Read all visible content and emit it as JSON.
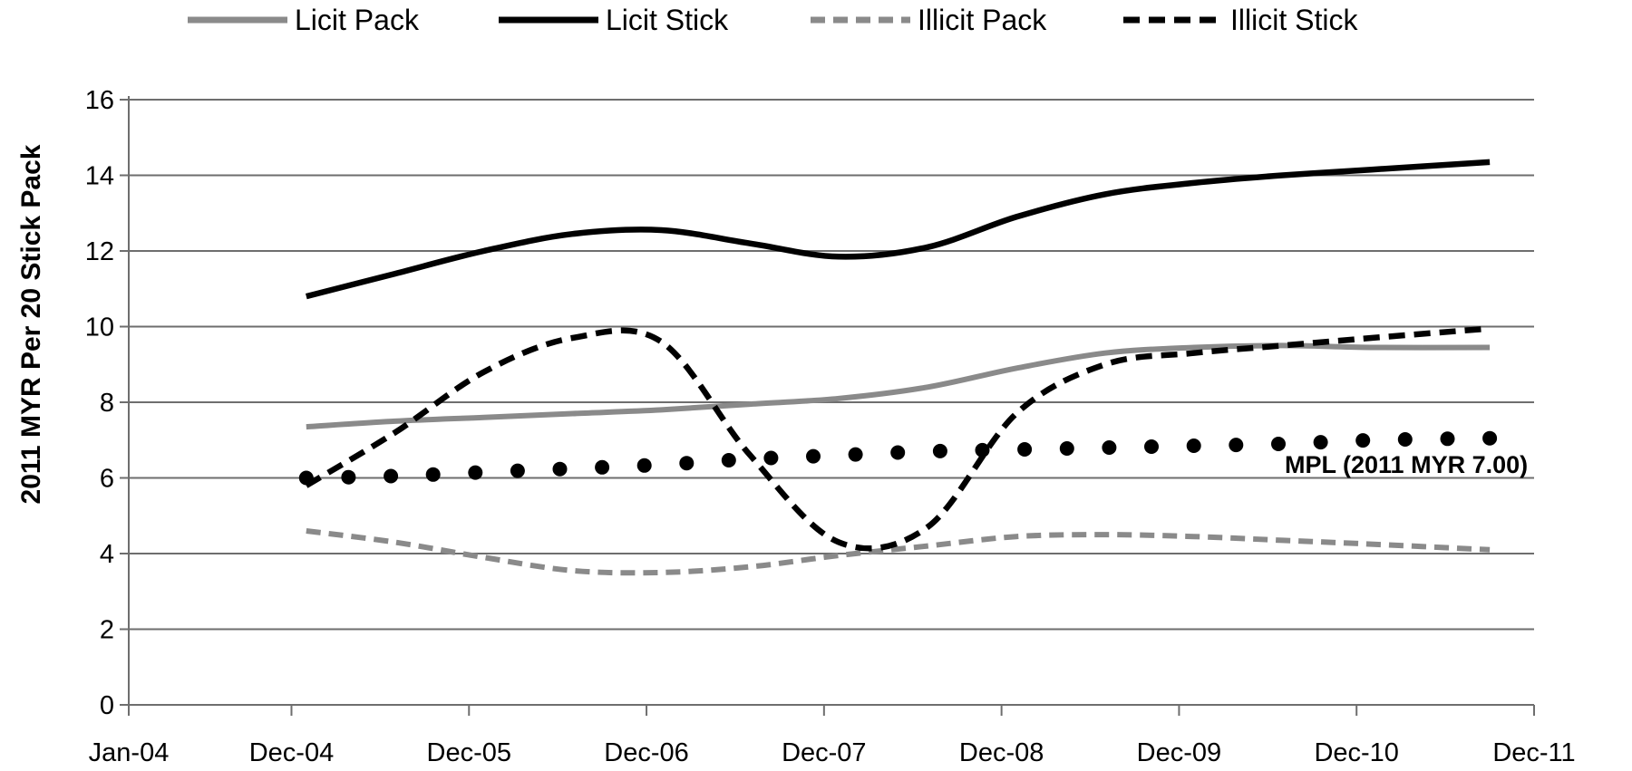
{
  "chart_data": {
    "type": "line",
    "ylabel": "2011 MYR Per 20 Stick Pack",
    "ylim": [
      0,
      16
    ],
    "yticks": [
      "0",
      "2",
      "4",
      "6",
      "8",
      "10",
      "12",
      "14",
      "16"
    ],
    "xticks": [
      "Jan-04",
      "Dec-04",
      "Dec-05",
      "Dec-06",
      "Dec-07",
      "Dec-08",
      "Dec-09",
      "Dec-10",
      "Dec-11"
    ],
    "grid": true,
    "legend_position": "top",
    "x": [
      "Jan-05",
      "Jul-05",
      "Jan-06",
      "Jul-06",
      "Jan-07",
      "Jul-07",
      "Jan-08",
      "Jul-08",
      "Jan-09",
      "Jul-09",
      "Jan-10",
      "Jul-10",
      "Jan-11",
      "Sep-11"
    ],
    "series": [
      {
        "name": "Licit Pack",
        "style": "solid-gray",
        "values": [
          7.35,
          7.5,
          7.6,
          7.7,
          7.8,
          7.95,
          8.1,
          8.4,
          8.9,
          9.3,
          9.45,
          9.5,
          9.45,
          9.45
        ]
      },
      {
        "name": "Licit Stick",
        "style": "solid-black",
        "values": [
          10.8,
          11.4,
          12.0,
          12.45,
          12.55,
          12.2,
          11.85,
          12.1,
          12.9,
          13.5,
          13.8,
          14.0,
          14.15,
          14.35
        ]
      },
      {
        "name": "Illicit Pack",
        "style": "dashed-gray",
        "values": [
          4.6,
          4.3,
          3.9,
          3.55,
          3.5,
          3.65,
          3.95,
          4.2,
          4.45,
          4.5,
          4.45,
          4.35,
          4.25,
          4.1
        ]
      },
      {
        "name": "Illicit Stick",
        "style": "dashed-black",
        "values": [
          5.8,
          7.2,
          8.8,
          9.7,
          9.6,
          6.6,
          4.3,
          4.7,
          7.7,
          9.0,
          9.3,
          9.5,
          9.7,
          9.95
        ]
      },
      {
        "name": "",
        "style": "dotted-black",
        "values": [
          6.0,
          6.05,
          6.15,
          6.25,
          6.35,
          6.5,
          6.6,
          6.7,
          6.75,
          6.8,
          6.85,
          6.9,
          7.0,
          7.05
        ]
      }
    ],
    "annotations": [
      {
        "text": "MPL (2011 MYR 7.00)",
        "series": 4
      }
    ]
  }
}
